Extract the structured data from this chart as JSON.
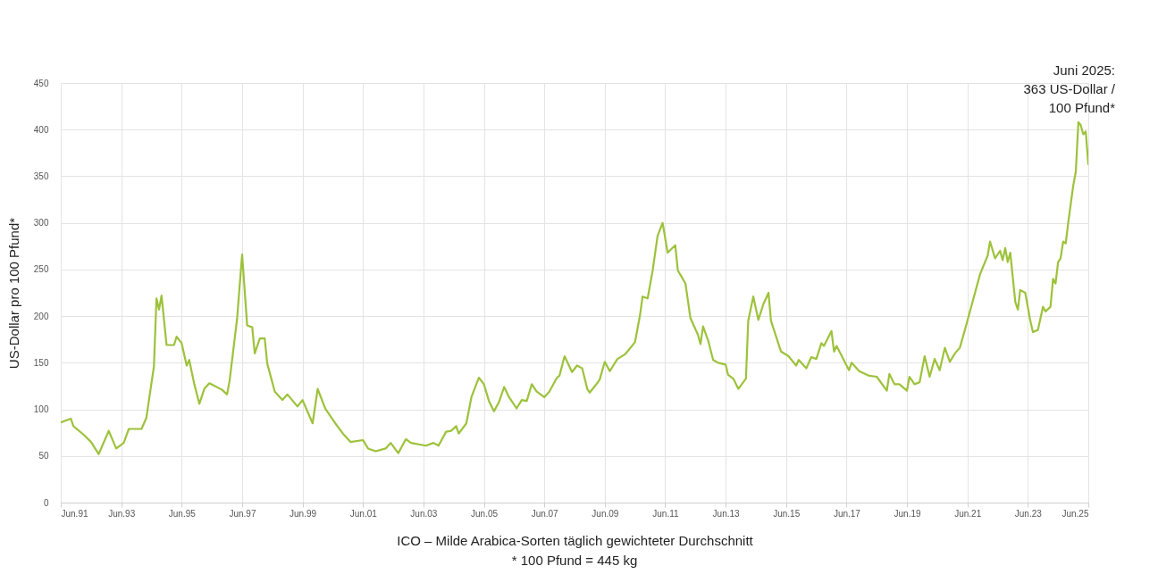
{
  "chart_data": {
    "type": "line",
    "ylabel": "US-Dollar pro 100 Pfund*",
    "xlabel": "ICO – Milde Arabica-Sorten täglich gewichteter Durchschnitt",
    "annotations": [
      "Juni 2025:\n363 US-Dollar /\n100 Pfund*",
      "* 100 Pfund = 445 kg"
    ],
    "x": [
      "1991-06",
      "1991-10",
      "1991-11",
      "1992-03",
      "1992-06",
      "1992-09",
      "1993-01",
      "1993-04",
      "1993-07",
      "1993-09",
      "1994-02",
      "1994-04",
      "1994-07",
      "1994-08",
      "1994-09",
      "1994-10",
      "1994-12",
      "1995-03",
      "1995-04",
      "1995-06",
      "1995-08",
      "1995-09",
      "1995-11",
      "1996-01",
      "1996-03",
      "1996-05",
      "1996-10",
      "1996-12",
      "1997-01",
      "1997-04",
      "1997-06",
      "1997-08",
      "1997-10",
      "1997-11",
      "1998-01",
      "1998-03",
      "1998-04",
      "1998-07",
      "1998-10",
      "1998-12",
      "1999-04",
      "1999-06",
      "1999-10",
      "1999-12",
      "2000-03",
      "2000-07",
      "2000-10",
      "2001-01",
      "2001-06",
      "2001-08",
      "2001-11",
      "2002-03",
      "2002-05",
      "2002-08",
      "2002-11",
      "2003-01",
      "2003-07",
      "2003-10",
      "2003-12",
      "2004-03",
      "2004-05",
      "2004-07",
      "2004-08",
      "2004-11",
      "2005-01",
      "2005-04",
      "2005-06",
      "2005-08",
      "2005-10",
      "2005-12",
      "2006-02",
      "2006-04",
      "2006-07",
      "2006-09",
      "2006-11",
      "2007-01",
      "2007-03",
      "2007-06",
      "2007-08",
      "2007-11",
      "2007-12",
      "2008-02",
      "2008-05",
      "2008-07",
      "2008-09",
      "2008-11",
      "2008-12",
      "2009-03",
      "2009-04",
      "2009-06",
      "2009-08",
      "2009-11",
      "2010-02",
      "2010-06",
      "2010-08",
      "2010-09",
      "2010-11",
      "2011-01",
      "2011-03",
      "2011-05",
      "2011-07",
      "2011-10",
      "2011-11",
      "2012-02",
      "2012-04",
      "2012-07",
      "2012-08",
      "2012-09",
      "2012-11",
      "2013-01",
      "2013-03",
      "2013-06",
      "2013-07",
      "2013-09",
      "2013-11",
      "2014-02",
      "2014-03",
      "2014-05",
      "2014-07",
      "2014-09",
      "2014-11",
      "2014-12",
      "2015-04",
      "2015-07",
      "2015-10",
      "2015-11",
      "2016-02",
      "2016-04",
      "2016-06",
      "2016-08",
      "2016-09",
      "2016-12",
      "2017-01",
      "2017-02",
      "2017-07",
      "2017-08",
      "2017-11",
      "2018-03",
      "2018-06",
      "2018-10",
      "2018-11",
      "2019-01",
      "2019-03",
      "2019-06",
      "2019-07",
      "2019-09",
      "2019-11",
      "2020-01",
      "2020-03",
      "2020-05",
      "2020-07",
      "2020-09",
      "2020-11",
      "2021-01",
      "2021-03",
      "2021-05",
      "2021-08",
      "2021-11",
      "2022-02",
      "2022-03",
      "2022-05",
      "2022-07",
      "2022-08",
      "2022-09",
      "2022-10",
      "2022-11",
      "2023-01",
      "2023-02",
      "2023-03",
      "2023-05",
      "2023-07",
      "2023-08",
      "2023-10",
      "2023-12",
      "2024-01",
      "2024-03",
      "2024-04",
      "2024-05",
      "2024-06",
      "2024-07",
      "2024-08",
      "2024-09",
      "2024-10",
      "2024-12",
      "2025-01",
      "2025-02",
      "2025-03",
      "2025-04",
      "2025-05",
      "2025-06"
    ],
    "series": [
      {
        "color": "#9dc23b",
        "values": [
          86,
          90,
          82,
          73,
          65,
          52,
          77,
          58,
          64,
          79,
          79,
          91,
          146,
          219,
          207,
          222,
          169,
          169,
          178,
          171,
          147,
          153,
          127,
          106,
          122,
          128,
          121,
          116,
          131,
          197,
          266,
          190,
          188,
          160,
          176,
          176,
          149,
          119,
          110,
          116,
          103,
          110,
          85,
          122,
          101,
          85,
          74,
          65,
          67,
          58,
          55,
          58,
          64,
          53,
          68,
          64,
          61,
          64,
          61,
          76,
          77,
          82,
          74,
          85,
          113,
          134,
          127,
          109,
          98,
          108,
          124,
          113,
          101,
          110,
          109,
          127,
          119,
          113,
          119,
          134,
          136,
          157,
          140,
          147,
          144,
          122,
          118,
          128,
          132,
          151,
          141,
          154,
          159,
          172,
          201,
          221,
          219,
          249,
          286,
          300,
          268,
          276,
          249,
          235,
          198,
          180,
          170,
          189,
          174,
          153,
          150,
          148,
          137,
          133,
          122,
          133,
          195,
          221,
          196,
          213,
          225,
          195,
          162,
          157,
          147,
          153,
          144,
          156,
          154,
          171,
          168,
          184,
          162,
          168,
          142,
          150,
          141,
          136,
          135,
          120,
          138,
          127,
          127,
          120,
          135,
          127,
          129,
          157,
          135,
          154,
          142,
          166,
          151,
          160,
          166,
          185,
          215,
          245,
          265,
          280,
          262,
          270,
          260,
          273,
          258,
          268,
          215,
          207,
          228,
          225,
          195,
          183,
          185,
          210,
          205,
          210,
          240,
          235,
          258,
          262,
          280,
          278,
          300,
          340,
          355,
          408,
          405,
          395,
          398,
          363
        ]
      }
    ],
    "xlim": [
      "1991-06",
      "2025-06"
    ],
    "xticks": [
      {
        "value": "1991-06",
        "label": "Jun.91"
      },
      {
        "value": "1993-06",
        "label": "Jun.93"
      },
      {
        "value": "1995-06",
        "label": "Jun.95"
      },
      {
        "value": "1997-06",
        "label": "Jun.97"
      },
      {
        "value": "1999-06",
        "label": "Jun.99"
      },
      {
        "value": "2001-06",
        "label": "Jun.01"
      },
      {
        "value": "2003-06",
        "label": "Jun.03"
      },
      {
        "value": "2005-06",
        "label": "Jun.05"
      },
      {
        "value": "2007-06",
        "label": "Jun.07"
      },
      {
        "value": "2009-06",
        "label": "Jun.09"
      },
      {
        "value": "2011-06",
        "label": "Jun.11"
      },
      {
        "value": "2013-06",
        "label": "Jun.13"
      },
      {
        "value": "2015-06",
        "label": "Jun.15"
      },
      {
        "value": "2017-06",
        "label": "Jun.17"
      },
      {
        "value": "2019-06",
        "label": "Jun.19"
      },
      {
        "value": "2021-06",
        "label": "Jun.21"
      },
      {
        "value": "2023-06",
        "label": "Jun.23"
      },
      {
        "value": "2025-06",
        "label": "Jun.25"
      }
    ],
    "ylim": [
      0,
      450
    ],
    "yticks": [
      0,
      50,
      100,
      150,
      200,
      250,
      300,
      350,
      400,
      450
    ],
    "grid": true,
    "marker": "none",
    "line_style": "solid"
  }
}
